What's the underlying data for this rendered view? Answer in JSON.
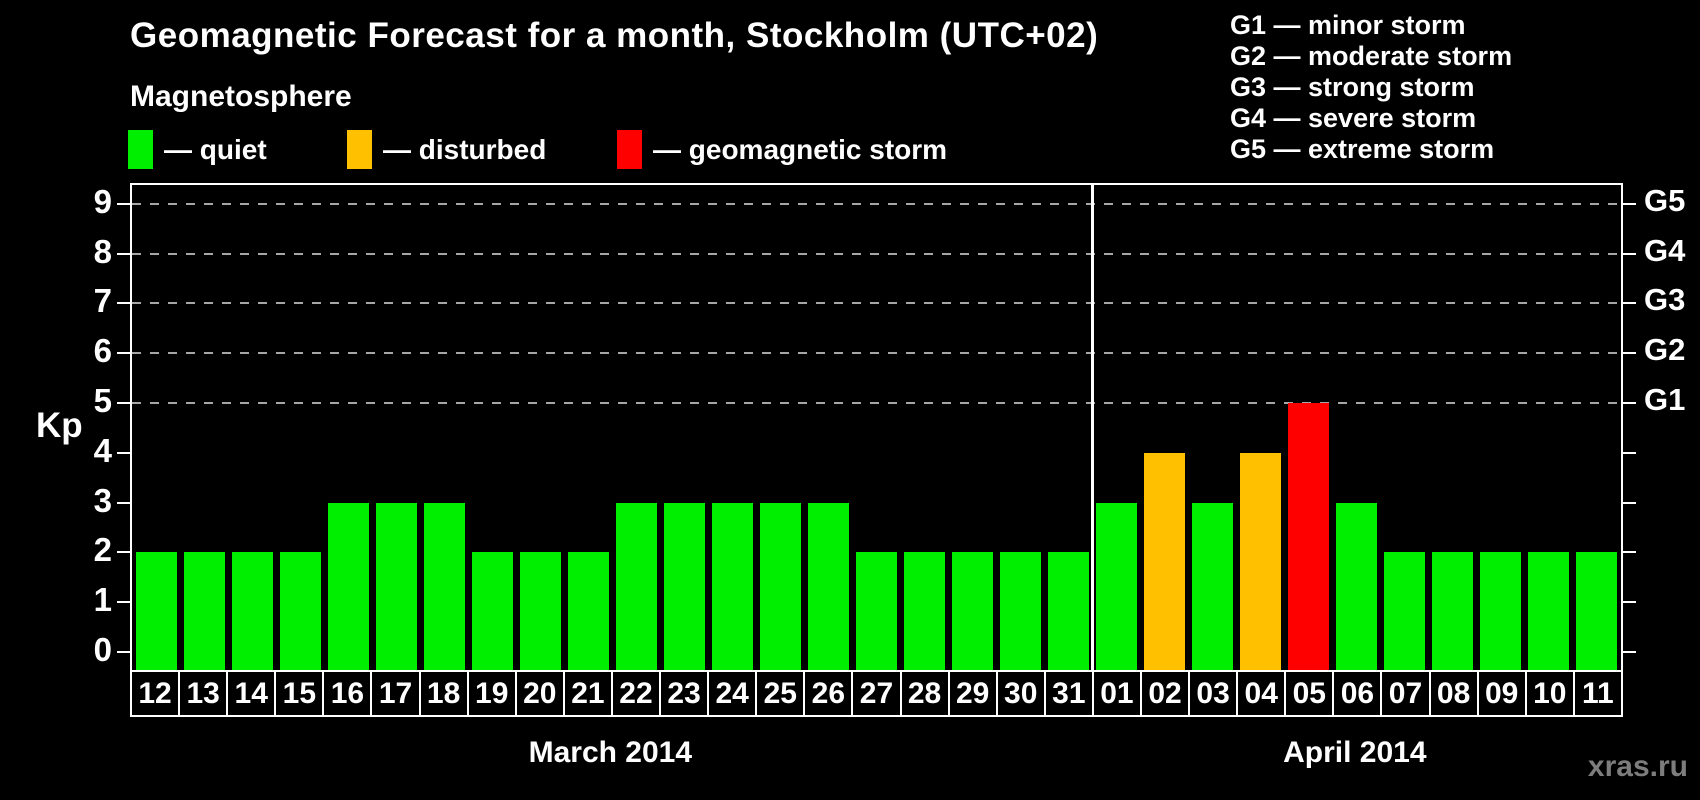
{
  "page": {
    "title": "Geomagnetic Forecast for a month, Stockholm (UTC+02)",
    "watermark": "xras.ru"
  },
  "legend": {
    "heading": "Magnetosphere",
    "items": [
      {
        "name": "quiet",
        "label": "— quiet",
        "color": "#00ee00"
      },
      {
        "name": "disturbed",
        "label": "— disturbed",
        "color": "#ffc000"
      },
      {
        "name": "storm",
        "label": "— geomagnetic storm",
        "color": "#ff0000"
      }
    ]
  },
  "g_scale_legend": [
    {
      "label": "G1 — minor storm"
    },
    {
      "label": "G2 — moderate storm"
    },
    {
      "label": "G3 — strong storm"
    },
    {
      "label": "G4 — severe storm"
    },
    {
      "label": "G5 — extreme storm"
    }
  ],
  "chart_data": {
    "type": "bar",
    "title": "Geomagnetic Forecast for a month, Stockholm (UTC+02)",
    "ylabel": "Kp",
    "ylim": [
      0,
      9
    ],
    "yticks": [
      0,
      1,
      2,
      3,
      4,
      5,
      6,
      7,
      8,
      9
    ],
    "gridlines_at": [
      5,
      6,
      7,
      8,
      9
    ],
    "grid_style": "dashed horizontal gray lines at Kp 5 through 9",
    "right_axis": [
      {
        "label": "G1",
        "kp": 5
      },
      {
        "label": "G2",
        "kp": 6
      },
      {
        "label": "G3",
        "kp": 7
      },
      {
        "label": "G4",
        "kp": 8
      },
      {
        "label": "G5",
        "kp": 9
      }
    ],
    "months": [
      {
        "label": "March 2014",
        "start_index": 0,
        "days": 20
      },
      {
        "label": "April 2014",
        "start_index": 20,
        "days": 11
      }
    ],
    "categories": [
      "12",
      "13",
      "14",
      "15",
      "16",
      "17",
      "18",
      "19",
      "20",
      "21",
      "22",
      "23",
      "24",
      "25",
      "26",
      "27",
      "28",
      "29",
      "30",
      "31",
      "01",
      "02",
      "03",
      "04",
      "05",
      "06",
      "07",
      "08",
      "09",
      "10",
      "11"
    ],
    "values": [
      2,
      2,
      2,
      2,
      3,
      3,
      3,
      2,
      2,
      2,
      3,
      3,
      3,
      3,
      3,
      2,
      2,
      2,
      2,
      2,
      3,
      4,
      3,
      4,
      5,
      3,
      2,
      2,
      2,
      2,
      2
    ],
    "statuses": [
      "quiet",
      "quiet",
      "quiet",
      "quiet",
      "quiet",
      "quiet",
      "quiet",
      "quiet",
      "quiet",
      "quiet",
      "quiet",
      "quiet",
      "quiet",
      "quiet",
      "quiet",
      "quiet",
      "quiet",
      "quiet",
      "quiet",
      "quiet",
      "quiet",
      "disturbed",
      "quiet",
      "disturbed",
      "storm",
      "quiet",
      "quiet",
      "quiet",
      "quiet",
      "quiet",
      "quiet"
    ],
    "colors": {
      "quiet": "#00ee00",
      "disturbed": "#ffc000",
      "storm": "#ff0000"
    }
  }
}
